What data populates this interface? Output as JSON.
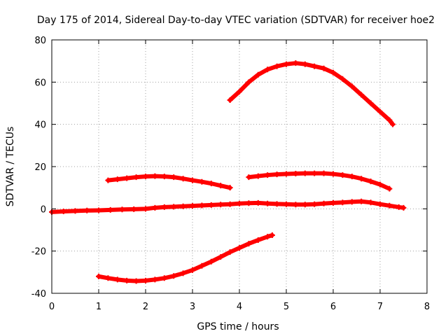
{
  "chart_data": {
    "type": "scatter",
    "title": "Day 175 of 2014, Sidereal Day-to-day VTEC variation (SDTVAR) for receiver hoe2",
    "xlabel": "GPS time / hours",
    "ylabel": "SDTVAR / TECUs",
    "xlim": [
      0,
      8
    ],
    "ylim": [
      -40,
      80
    ],
    "x_ticks": [
      "0",
      "1",
      "2",
      "3",
      "4",
      "5",
      "6",
      "7",
      "8"
    ],
    "y_ticks": [
      "-40",
      "-20",
      "0",
      "20",
      "40",
      "60",
      "80"
    ],
    "grid": true,
    "marker": "plus",
    "color": "#ff0000",
    "series": [
      {
        "x": [
          3.8,
          4.0,
          4.2,
          4.4,
          4.6,
          4.8,
          5.0,
          5.2,
          5.4,
          5.6,
          5.8,
          6.0,
          6.2,
          6.4,
          6.6,
          6.8,
          7.0,
          7.2,
          7.27
        ],
        "y": [
          51.5,
          55.5,
          60,
          63.5,
          66,
          67.5,
          68.5,
          69,
          68.5,
          67.5,
          66.5,
          64.5,
          61.5,
          58,
          54,
          50,
          46,
          42,
          40
        ]
      },
      {
        "x": [
          1.2,
          1.4,
          1.6,
          1.8,
          2.0,
          2.2,
          2.4,
          2.6,
          2.8,
          3.0,
          3.2,
          3.4,
          3.6,
          3.8
        ],
        "y": [
          13.5,
          14,
          14.5,
          15,
          15.3,
          15.5,
          15.3,
          15,
          14.3,
          13.5,
          12.8,
          12,
          11,
          10
        ]
      },
      {
        "x": [
          4.2,
          4.4,
          4.6,
          4.8,
          5.0,
          5.2,
          5.4,
          5.6,
          5.8,
          6.0,
          6.2,
          6.4,
          6.6,
          6.8,
          7.0,
          7.2
        ],
        "y": [
          15,
          15.5,
          16,
          16.3,
          16.5,
          16.7,
          16.8,
          16.8,
          16.8,
          16.5,
          16,
          15.3,
          14.3,
          13,
          11.5,
          9.5
        ]
      },
      {
        "x": [
          0.0,
          0.25,
          0.5,
          0.75,
          1.0,
          1.25,
          1.5,
          1.75,
          2.0,
          2.2,
          2.4,
          2.6,
          2.8,
          3.0,
          3.2,
          3.4,
          3.6,
          3.8,
          4.0,
          4.2,
          4.4,
          4.6,
          4.8,
          5.0,
          5.2,
          5.4,
          5.6,
          5.8,
          6.0,
          6.2,
          6.4,
          6.6,
          6.8,
          7.0,
          7.2,
          7.4,
          7.5
        ],
        "y": [
          -1.5,
          -1.2,
          -1,
          -0.8,
          -0.7,
          -0.5,
          -0.3,
          -0.2,
          0,
          0.5,
          0.8,
          1,
          1.2,
          1.4,
          1.6,
          1.8,
          2,
          2.2,
          2.5,
          2.7,
          2.8,
          2.5,
          2.3,
          2.2,
          2.0,
          2.0,
          2.2,
          2.5,
          2.8,
          3.0,
          3.3,
          3.5,
          3.0,
          2.2,
          1.5,
          0.8,
          0.5
        ]
      },
      {
        "x": [
          1.0,
          1.2,
          1.4,
          1.6,
          1.8,
          2.0,
          2.2,
          2.4,
          2.6,
          2.8,
          3.0,
          3.2,
          3.4,
          3.6,
          3.8,
          4.0,
          4.2,
          4.4,
          4.6,
          4.7
        ],
        "y": [
          -32,
          -32.8,
          -33.5,
          -34,
          -34.2,
          -34,
          -33.5,
          -32.8,
          -31.8,
          -30.5,
          -29,
          -27,
          -25,
          -22.8,
          -20.5,
          -18.5,
          -16.5,
          -14.8,
          -13.2,
          -12.5
        ]
      }
    ]
  }
}
